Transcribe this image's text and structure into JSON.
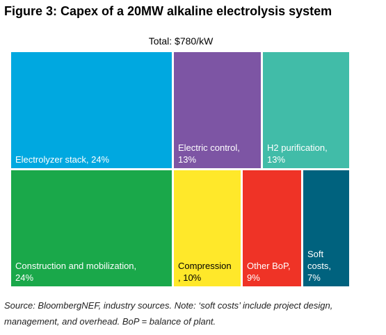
{
  "figure": {
    "title": "Figure 3: Capex of a 20MW alkaline electrolysis system",
    "source_note": "Source: BloombergNEF, industry sources. Note: ‘soft costs’ include project design, management, and overhead. BoP = balance of plant."
  },
  "chart_data": {
    "type": "treemap",
    "title": "Total: $780/kW",
    "total_label": "Total: $780/kW",
    "unit": "% of capex",
    "items": [
      {
        "label": "Electrolyzer stack, 24%",
        "label_lines": [
          "Electrolyzer stack, 24%"
        ],
        "value": 24,
        "color": "#00a8e0"
      },
      {
        "label": "Electric control, 13%",
        "label_lines": [
          "Electric control,",
          "13%"
        ],
        "value": 13,
        "color": "#7d55a4"
      },
      {
        "label": "H2 purification, 13%",
        "label_lines": [
          "H2 purification,",
          "13%"
        ],
        "value": 13,
        "color": "#41bca8"
      },
      {
        "label": "Construction and mobilization, 24%",
        "label_lines": [
          "Construction and mobilization,",
          "24%"
        ],
        "value": 24,
        "color": "#1aa84a"
      },
      {
        "label": "Compression, 10%",
        "label_lines": [
          "Compression",
          ", 10%"
        ],
        "value": 10,
        "color": "#ffe82a",
        "text_color": "#000000"
      },
      {
        "label": "Other BoP, 9%",
        "label_lines": [
          "Other BoP,",
          "9%"
        ],
        "value": 9,
        "color": "#ef3326"
      },
      {
        "label": "Soft costs, 7%",
        "label_lines": [
          "Soft",
          "costs,",
          "7%"
        ],
        "value": 7,
        "color": "#00627e"
      }
    ]
  }
}
